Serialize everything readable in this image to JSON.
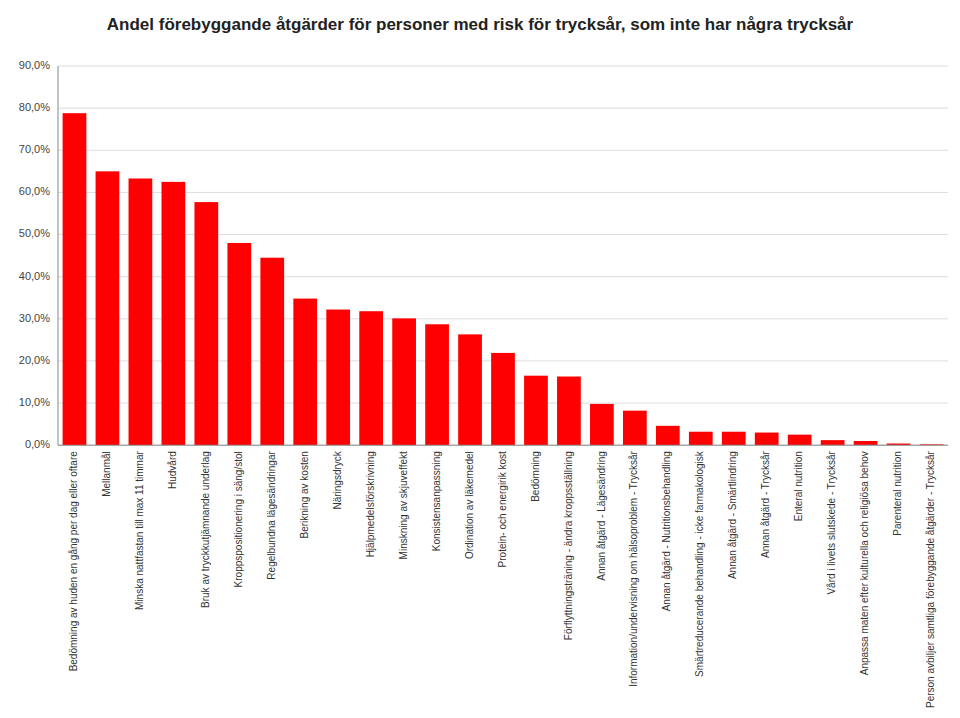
{
  "chart_data": {
    "type": "bar",
    "title": "Andel förebyggande åtgärder för personer med risk för trycksår, som inte har några trycksår",
    "categories": [
      "Bedömning av huden en gång per dag eller oftare",
      "Mellanmål",
      "Minska nattfastan till max 11 timmar",
      "Hudvård",
      "Bruk av tryckkutjämnande underlag",
      "Kroppspositionering i säng/stol",
      "Regelbundna lägesändringar",
      "Berikning av kosten",
      "Näringsdryck",
      "Hjälpmedelsförskrivning",
      "Minskning av skjuveffekt",
      "Konsistensanpassning",
      "Ordination av läkemedel",
      "Protein- och energirik kost",
      "Bedömning",
      "Förflyttningsträning - ändra kroppsställning",
      "Annan åtgärd - Lägesändring",
      "Information/undervisning om hälsoproblem - Trycksår",
      "Annan åtgärd - Nutritionsbehandling",
      "Smärtreducerande behandling - icke farmakologisk",
      "Annan åtgärd - Smärtlindring",
      "Annan åtgärd - Trycksår",
      "Enteral nutrition",
      "Vård i livets slutskede - Trycksår",
      "Anpassa maten efter kulturella och religiösa behov",
      "Parenteral nutrition",
      "Person avbiljer samtliga förebyggande åtgärder - Trycksår"
    ],
    "values": [
      78.8,
      65.0,
      63.3,
      62.5,
      57.7,
      48.0,
      44.5,
      34.8,
      32.2,
      31.8,
      30.1,
      28.7,
      26.3,
      21.9,
      16.5,
      16.3,
      9.8,
      8.2,
      4.6,
      3.2,
      3.2,
      3.0,
      2.5,
      1.2,
      1.0,
      0.4,
      0.2
    ],
    "color": "#FF0000",
    "ylim": [
      0,
      90
    ],
    "yticks": [
      {
        "value": 0,
        "label": "0,0%"
      },
      {
        "value": 10,
        "label": "10,0%"
      },
      {
        "value": 20,
        "label": "20,0%"
      },
      {
        "value": 30,
        "label": "30,0%"
      },
      {
        "value": 40,
        "label": "40,0%"
      },
      {
        "value": 50,
        "label": "50,0%"
      },
      {
        "value": 60,
        "label": "60,0%"
      },
      {
        "value": 70,
        "label": "70,0%"
      },
      {
        "value": 80,
        "label": "80,0%"
      },
      {
        "value": 90,
        "label": "90,0%"
      }
    ],
    "grid": true
  }
}
